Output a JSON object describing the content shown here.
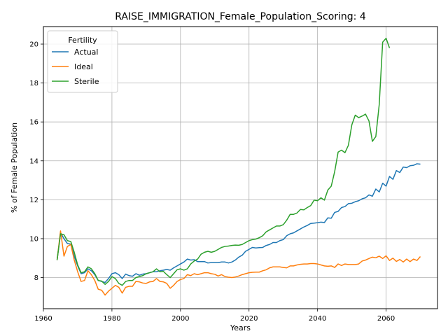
{
  "chart_data": {
    "type": "line",
    "title": "RAISE_IMMIGRATION_Female_Population_Scoring: 4",
    "xlabel": "Years",
    "ylabel": "% of Female Population",
    "xlim": [
      1960,
      2075
    ],
    "ylim": [
      6.4,
      20.9
    ],
    "xticks": [
      1960,
      1980,
      2000,
      2020,
      2040,
      2060
    ],
    "yticks": [
      8,
      10,
      12,
      14,
      16,
      18,
      20
    ],
    "grid": true,
    "legend": {
      "title": "Fertility",
      "placement": "top-left"
    },
    "series": [
      {
        "name": "Actual",
        "color": "#1f77b4",
        "x": [
          1964,
          1965,
          1966,
          1967,
          1968,
          1969,
          1970,
          1971,
          1972,
          1973,
          1974,
          1975,
          1976,
          1977,
          1978,
          1979,
          1980,
          1981,
          1982,
          1983,
          1984,
          1985,
          1986,
          1987,
          1988,
          1989,
          1990,
          1991,
          1992,
          1993,
          1994,
          1995,
          1996,
          1997,
          1998,
          1999,
          2000,
          2001,
          2002,
          2003,
          2004,
          2005,
          2006,
          2007,
          2008,
          2009,
          2010,
          2011,
          2012,
          2013,
          2014,
          2015,
          2016,
          2017,
          2018,
          2019,
          2020,
          2021,
          2022,
          2023,
          2024,
          2025,
          2026,
          2027,
          2028,
          2029,
          2030,
          2031,
          2032,
          2033,
          2034,
          2035,
          2036,
          2037,
          2038,
          2039,
          2040,
          2041,
          2042,
          2043,
          2044,
          2045,
          2046,
          2047,
          2048,
          2049,
          2050,
          2051,
          2052,
          2053,
          2054,
          2055,
          2056,
          2057,
          2058,
          2059,
          2060,
          2061,
          2062,
          2063,
          2064,
          2065,
          2066,
          2067,
          2068,
          2069,
          2070
        ],
        "y": [
          8.9,
          10.3,
          10.0,
          9.75,
          9.72,
          9.1,
          8.6,
          8.2,
          8.25,
          8.45,
          8.35,
          8.15,
          7.85,
          7.8,
          7.75,
          7.95,
          8.2,
          8.25,
          8.15,
          7.95,
          8.18,
          8.1,
          8.07,
          8.2,
          8.12,
          8.18,
          8.2,
          8.25,
          8.3,
          8.3,
          8.35,
          8.38,
          8.42,
          8.38,
          8.5,
          8.6,
          8.7,
          8.8,
          8.95,
          8.9,
          8.92,
          8.82,
          8.82,
          8.82,
          8.75,
          8.77,
          8.77,
          8.77,
          8.8,
          8.8,
          8.75,
          8.8,
          8.9,
          9.05,
          9.15,
          9.35,
          9.45,
          9.55,
          9.52,
          9.54,
          9.55,
          9.65,
          9.7,
          9.8,
          9.8,
          9.9,
          9.95,
          10.15,
          10.25,
          10.3,
          10.4,
          10.5,
          10.6,
          10.68,
          10.78,
          10.8,
          10.82,
          10.85,
          10.83,
          11.07,
          11.05,
          11.35,
          11.4,
          11.6,
          11.65,
          11.8,
          11.82,
          11.9,
          11.95,
          12.05,
          12.1,
          12.25,
          12.18,
          12.55,
          12.4,
          12.85,
          12.7,
          13.2,
          13.05,
          13.5,
          13.4,
          13.68,
          13.65,
          13.75,
          13.77,
          13.85,
          13.83
        ]
      },
      {
        "name": "Ideal",
        "color": "#ff7f0e",
        "x": [
          1964,
          1965,
          1966,
          1967,
          1968,
          1969,
          1970,
          1971,
          1972,
          1973,
          1974,
          1975,
          1976,
          1977,
          1978,
          1979,
          1980,
          1981,
          1982,
          1983,
          1984,
          1985,
          1986,
          1987,
          1988,
          1989,
          1990,
          1991,
          1992,
          1993,
          1994,
          1995,
          1996,
          1997,
          1998,
          1999,
          2000,
          2001,
          2002,
          2003,
          2004,
          2005,
          2006,
          2007,
          2008,
          2009,
          2010,
          2011,
          2012,
          2013,
          2014,
          2015,
          2016,
          2017,
          2018,
          2019,
          2020,
          2021,
          2022,
          2023,
          2024,
          2025,
          2026,
          2027,
          2028,
          2029,
          2030,
          2031,
          2032,
          2033,
          2034,
          2035,
          2036,
          2037,
          2038,
          2039,
          2040,
          2041,
          2042,
          2043,
          2044,
          2045,
          2046,
          2047,
          2048,
          2049,
          2050,
          2051,
          2052,
          2053,
          2054,
          2055,
          2056,
          2057,
          2058,
          2059,
          2060,
          2061,
          2062,
          2063,
          2064,
          2065,
          2066,
          2067,
          2068,
          2069,
          2070
        ],
        "y": [
          8.9,
          10.4,
          9.1,
          9.6,
          9.7,
          8.9,
          8.3,
          7.8,
          7.85,
          8.35,
          8.15,
          7.85,
          7.4,
          7.35,
          7.1,
          7.3,
          7.45,
          7.6,
          7.5,
          7.2,
          7.5,
          7.55,
          7.55,
          7.8,
          7.78,
          7.72,
          7.7,
          7.78,
          7.8,
          7.95,
          7.8,
          7.78,
          7.7,
          7.45,
          7.6,
          7.8,
          7.9,
          7.95,
          8.15,
          8.1,
          8.2,
          8.15,
          8.2,
          8.25,
          8.25,
          8.2,
          8.17,
          8.08,
          8.15,
          8.05,
          8.02,
          8.0,
          8.03,
          8.08,
          8.15,
          8.2,
          8.25,
          8.27,
          8.28,
          8.28,
          8.35,
          8.4,
          8.5,
          8.55,
          8.55,
          8.55,
          8.52,
          8.5,
          8.6,
          8.6,
          8.65,
          8.68,
          8.7,
          8.7,
          8.72,
          8.72,
          8.7,
          8.65,
          8.6,
          8.58,
          8.6,
          8.52,
          8.7,
          8.62,
          8.7,
          8.67,
          8.67,
          8.67,
          8.7,
          8.85,
          8.9,
          8.98,
          9.05,
          9.02,
          9.1,
          8.98,
          9.12,
          8.88,
          9.0,
          8.83,
          8.93,
          8.8,
          8.95,
          8.82,
          8.95,
          8.88,
          9.08
        ]
      },
      {
        "name": "Sterile",
        "color": "#2ca02c",
        "x": [
          1964,
          1965,
          1966,
          1967,
          1968,
          1969,
          1970,
          1971,
          1972,
          1973,
          1974,
          1975,
          1976,
          1977,
          1978,
          1979,
          1980,
          1981,
          1982,
          1983,
          1984,
          1985,
          1986,
          1987,
          1988,
          1989,
          1990,
          1991,
          1992,
          1993,
          1994,
          1995,
          1996,
          1997,
          1998,
          1999,
          2000,
          2001,
          2002,
          2003,
          2004,
          2005,
          2006,
          2007,
          2008,
          2009,
          2010,
          2011,
          2012,
          2013,
          2014,
          2015,
          2016,
          2017,
          2018,
          2019,
          2020,
          2021,
          2022,
          2023,
          2024,
          2025,
          2026,
          2027,
          2028,
          2029,
          2030,
          2031,
          2032,
          2033,
          2034,
          2035,
          2036,
          2037,
          2038,
          2039,
          2040,
          2041,
          2042,
          2043,
          2044,
          2045,
          2046,
          2047,
          2048,
          2049,
          2050,
          2051,
          2052,
          2053,
          2054,
          2055,
          2056,
          2057,
          2058,
          2059,
          2060,
          2061
        ],
        "y": [
          8.9,
          10.25,
          10.2,
          9.9,
          9.85,
          9.3,
          8.65,
          8.25,
          8.3,
          8.55,
          8.45,
          8.2,
          7.85,
          7.82,
          7.65,
          7.8,
          8.05,
          7.95,
          7.7,
          7.6,
          7.8,
          7.85,
          7.85,
          8.0,
          8.05,
          8.1,
          8.2,
          8.25,
          8.3,
          8.45,
          8.3,
          8.32,
          8.15,
          8.0,
          8.2,
          8.4,
          8.45,
          8.38,
          8.45,
          8.7,
          8.85,
          8.95,
          9.2,
          9.3,
          9.35,
          9.3,
          9.35,
          9.45,
          9.55,
          9.6,
          9.62,
          9.65,
          9.67,
          9.66,
          9.7,
          9.8,
          9.9,
          9.95,
          9.98,
          10.05,
          10.15,
          10.35,
          10.45,
          10.55,
          10.65,
          10.65,
          10.72,
          10.95,
          11.25,
          11.25,
          11.32,
          11.5,
          11.48,
          11.6,
          11.7,
          11.98,
          11.95,
          12.1,
          11.98,
          12.5,
          12.7,
          13.45,
          14.45,
          14.55,
          14.42,
          14.8,
          15.85,
          16.35,
          16.22,
          16.3,
          16.4,
          16.05,
          15.0,
          15.25,
          16.9,
          20.1,
          20.3,
          19.8
        ]
      }
    ]
  }
}
